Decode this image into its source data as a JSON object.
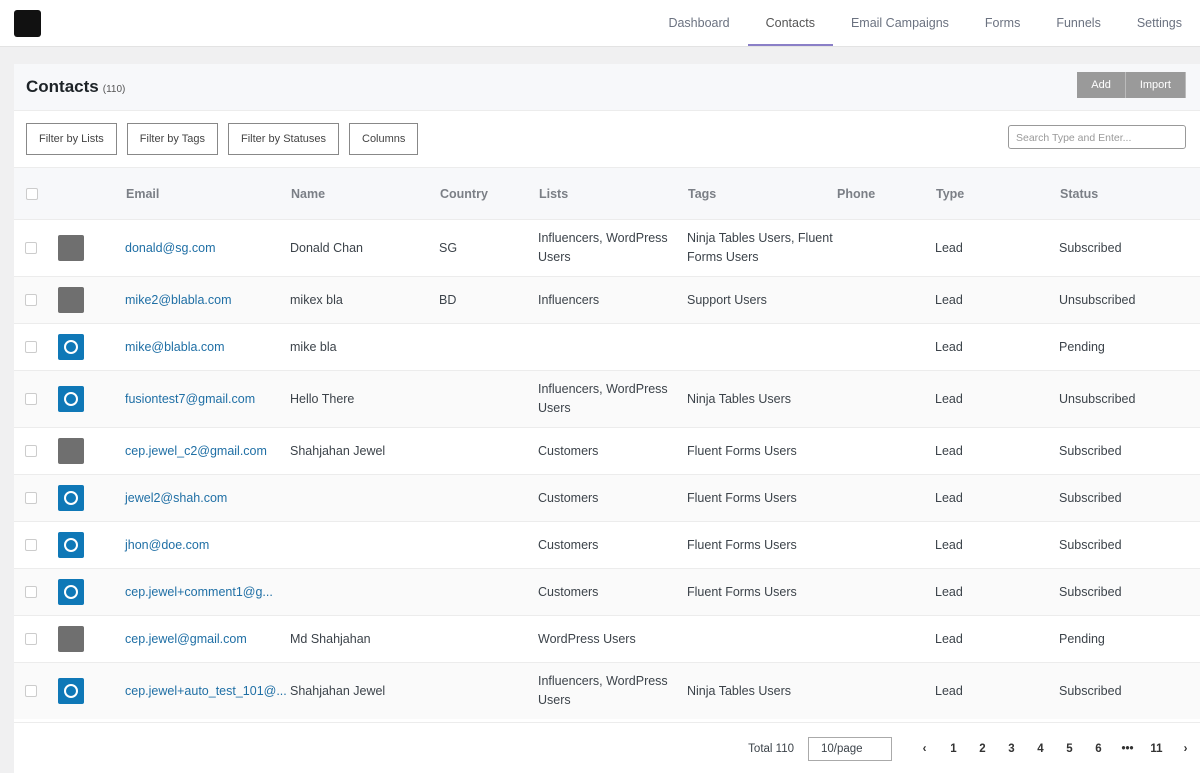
{
  "nav": {
    "items": [
      "Dashboard",
      "Contacts",
      "Email Campaigns",
      "Forms",
      "Funnels",
      "Settings"
    ]
  },
  "header": {
    "title": "Contacts",
    "count": "(110)",
    "buttons": [
      "Add",
      "Import"
    ]
  },
  "filters": {
    "items": [
      "Filter by Lists",
      "Filter by Tags",
      "Filter by Statuses",
      "Columns"
    ],
    "search_placeholder": "Search Type and Enter..."
  },
  "table": {
    "columns": [
      "Email",
      "Name",
      "Country",
      "Lists",
      "Tags",
      "Phone",
      "Type",
      "Status"
    ],
    "rows": [
      [
        "donald@sg.com",
        "Donald Chan",
        "SG",
        "Influencers, WordPress Users",
        "Ninja Tables Users, Fluent Forms Users",
        null,
        "Lead",
        "Subscribed"
      ],
      [
        "mike2@blabla.com",
        "mikex bla",
        "BD",
        "Influencers",
        "Support Users",
        null,
        "Lead",
        "Unsubscribed"
      ],
      [
        "mike@blabla.com",
        "mike bla",
        null,
        null,
        null,
        null,
        "Lead",
        "Pending"
      ],
      [
        "fusiontest7@gmail.com",
        "Hello There",
        null,
        "Influencers, WordPress Users",
        "Ninja Tables Users",
        null,
        "Lead",
        "Unsubscribed"
      ],
      [
        "cep.jewel_c2@gmail.com",
        "Shahjahan Jewel",
        null,
        "Customers",
        "Fluent Forms Users",
        null,
        "Lead",
        "Subscribed"
      ],
      [
        "jewel2@shah.com",
        null,
        null,
        "Customers",
        "Fluent Forms Users",
        null,
        "Lead",
        "Subscribed"
      ],
      [
        "jhon@doe.com",
        null,
        null,
        "Customers",
        "Fluent Forms Users",
        null,
        "Lead",
        "Subscribed"
      ],
      [
        "cep.jewel+comment1@g...",
        null,
        null,
        "Customers",
        "Fluent Forms Users",
        null,
        "Lead",
        "Subscribed"
      ],
      [
        "cep.jewel@gmail.com",
        "Md Shahjahan",
        null,
        "WordPress Users",
        null,
        null,
        "Lead",
        "Pending"
      ],
      [
        "cep.jewel+auto_test_101@...",
        "Shahjahan Jewel",
        null,
        "Influencers, WordPress Users",
        "Ninja Tables Users",
        null,
        "Lead",
        "Subscribed"
      ]
    ]
  },
  "pagination": {
    "total": "Total 110",
    "page_size": "10/page",
    "pages": [
      1,
      2,
      3,
      4,
      5,
      6,
      "•••",
      11
    ]
  }
}
